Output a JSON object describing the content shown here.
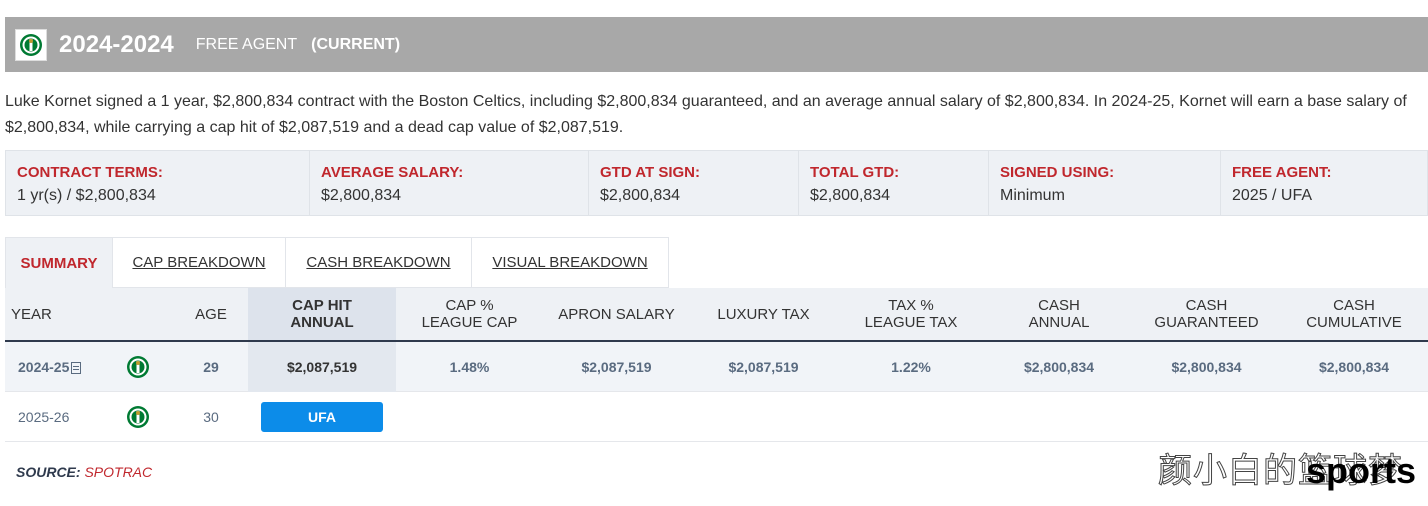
{
  "header": {
    "season": "2024-2024",
    "status": "FREE AGENT",
    "current": "(CURRENT)",
    "logo_icon": "celtics-logo-icon"
  },
  "summary_text": "Luke Kornet signed a 1 year, $2,800,834 contract with the Boston Celtics, including $2,800,834 guaranteed, and an average annual salary of $2,800,834. In 2024-25, Kornet will earn a base salary of $2,800,834, while carrying a cap hit of $2,087,519 and a dead cap value of $2,087,519.",
  "terms": [
    {
      "label": "CONTRACT TERMS:",
      "value": "1 yr(s) / $2,800,834"
    },
    {
      "label": "AVERAGE SALARY:",
      "value": "$2,800,834"
    },
    {
      "label": "GTD AT SIGN:",
      "value": "$2,800,834"
    },
    {
      "label": "TOTAL GTD:",
      "value": "$2,800,834"
    },
    {
      "label": "SIGNED USING:",
      "value": "Minimum"
    },
    {
      "label": "FREE AGENT:",
      "value": "2025 / UFA"
    }
  ],
  "tabs": [
    {
      "label": "SUMMARY",
      "active": true
    },
    {
      "label": "CAP BREAKDOWN"
    },
    {
      "label": "CASH BREAKDOWN"
    },
    {
      "label": "VISUAL BREAKDOWN"
    }
  ],
  "table": {
    "headers": {
      "year": "YEAR",
      "age": "AGE",
      "cap_hit": [
        "CAP HIT",
        "ANNUAL"
      ],
      "cap_pct": [
        "CAP %",
        "LEAGUE CAP"
      ],
      "apron": "APRON SALARY",
      "luxury": "LUXURY TAX",
      "tax_pct": [
        "TAX %",
        "LEAGUE TAX"
      ],
      "cash_annual": [
        "CASH",
        "ANNUAL"
      ],
      "cash_gtd": [
        "CASH",
        "GUARANTEED"
      ],
      "cash_cum": [
        "CASH",
        "CUMULATIVE"
      ]
    },
    "rows": [
      {
        "year": "2024-25",
        "age": "29",
        "cap_hit": "$2,087,519",
        "cap_pct": "1.48%",
        "apron": "$2,087,519",
        "luxury": "$2,087,519",
        "tax_pct": "1.22%",
        "cash_annual": "$2,800,834",
        "cash_gtd": "$2,800,834",
        "cash_cum": "$2,800,834"
      },
      {
        "year": "2025-26",
        "age": "30",
        "status_badge": "UFA"
      }
    ]
  },
  "source": {
    "label": "SOURCE:",
    "value": "SPOTRAC"
  },
  "watermark": {
    "chinese": "颜小白的篮球梦",
    "english": "sports"
  },
  "colors": {
    "accent_red": "#c0272d",
    "ufa_blue": "#0c8ce9",
    "header_gray": "#a8a8a8",
    "celtics_green": "#007a33"
  }
}
